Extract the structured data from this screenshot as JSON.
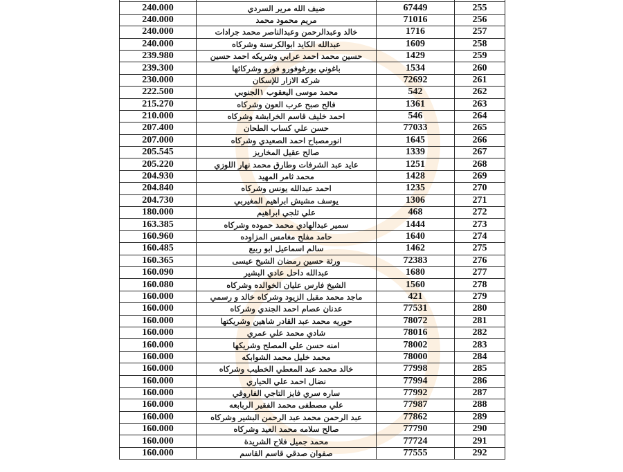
{
  "rows": [
    {
      "amount": "240.000",
      "name": "ضيف الله مرير السردي",
      "number": "67449",
      "index": "255"
    },
    {
      "amount": "240.000",
      "name": "مريم محمود محمد",
      "number": "71016",
      "index": "256"
    },
    {
      "amount": "240.000",
      "name": "خالد وعبدالرحمن وعبدالناصر محمد جرادات",
      "number": "1716",
      "index": "257"
    },
    {
      "amount": "240.000",
      "name": "عبدالله الكايد ابوالكرسنة وشركاه",
      "number": "1609",
      "index": "258"
    },
    {
      "amount": "239.980",
      "name": "حسين محمد احمد عرابي وشريكه احمد حسين",
      "number": "1429",
      "index": "259"
    },
    {
      "amount": "239.300",
      "name": "باغوني بورغوفورو فورو وشركائها",
      "number": "1534",
      "index": "260"
    },
    {
      "amount": "230.000",
      "name": "شركة الازار للإسكان",
      "number": "72692",
      "index": "261"
    },
    {
      "amount": "222.500",
      "name": "محمد موسى اليعقوب ١الجنوبي",
      "number": "542",
      "index": "262"
    },
    {
      "amount": "215.270",
      "name": "فالح صبح عرب العون وشركاه",
      "number": "1361",
      "index": "263"
    },
    {
      "amount": "210.000",
      "name": "احمد خليف قاسم الخرابشة وشركاه",
      "number": "546",
      "index": "264"
    },
    {
      "amount": "207.400",
      "name": "حسن علي كساب الطحان",
      "number": "77033",
      "index": "265"
    },
    {
      "amount": "207.000",
      "name": "انورمصباح احمد الصعيدي وشركاه",
      "number": "1645",
      "index": "266"
    },
    {
      "amount": "205.545",
      "name": "صالح عقيل المخاريز",
      "number": "1339",
      "index": "267"
    },
    {
      "amount": "205.220",
      "name": "عايد عبد الشرفات وطارق محمد نهار اللوزي",
      "number": "1251",
      "index": "268"
    },
    {
      "amount": "204.930",
      "name": "محمد ثامر المهيد",
      "number": "1428",
      "index": "269"
    },
    {
      "amount": "204.840",
      "name": "احمد عبدالله يونس وشركاه",
      "number": "1235",
      "index": "270"
    },
    {
      "amount": "204.730",
      "name": "يوسف مشيش ابراهيم المغيربي",
      "number": "1306",
      "index": "271"
    },
    {
      "amount": "180.000",
      "name": "علي ثلجي ابراهيم",
      "number": "468",
      "index": "272"
    },
    {
      "amount": "163.385",
      "name": "سمير عبدالهادي محمد حموده وشركاه",
      "number": "1444",
      "index": "273"
    },
    {
      "amount": "160.960",
      "name": "حامد مفلح مغامس المزاوده",
      "number": "1640",
      "index": "274"
    },
    {
      "amount": "160.485",
      "name": "سالم اسماعيل ابو ربيع",
      "number": "1462",
      "index": "275"
    },
    {
      "amount": "160.365",
      "name": "ورثة حسين رمضان الشيخ عيسى",
      "number": "72383",
      "index": "276"
    },
    {
      "amount": "160.090",
      "name": "عبدالله داحل عادي البشير",
      "number": "1680",
      "index": "277"
    },
    {
      "amount": "160.080",
      "name": "الشيخ فارس عليان الخوالده وشركاه",
      "number": "1560",
      "index": "278"
    },
    {
      "amount": "160.000",
      "name": "ماجد محمد مقبل الزيود وشركاه خالد و رسمي",
      "number": "421",
      "index": "279"
    },
    {
      "amount": "160.000",
      "name": "عدنان عصام احمد الجندي وشركاه",
      "number": "77531",
      "index": "280"
    },
    {
      "amount": "160.000",
      "name": "حوريه محمد عبد القادر شاهين وشريكتها",
      "number": "78072",
      "index": "281"
    },
    {
      "amount": "160.000",
      "name": "شادي محمد علي عمري",
      "number": "78016",
      "index": "282"
    },
    {
      "amount": "160.000",
      "name": "امنه حسن علي المصلح وشريكها",
      "number": "78002",
      "index": "283"
    },
    {
      "amount": "160.000",
      "name": "محمد خليل محمد الشوابكه",
      "number": "78000",
      "index": "284"
    },
    {
      "amount": "160.000",
      "name": "خالد محمد عبد المعطي الخطيب وشركاه",
      "number": "77998",
      "index": "285"
    },
    {
      "amount": "160.000",
      "name": "نضال احمد علي الحياري",
      "number": "77994",
      "index": "286"
    },
    {
      "amount": "160.000",
      "name": "ساره سري فايز التاجي الفاروقي",
      "number": "77992",
      "index": "287"
    },
    {
      "amount": "160.000",
      "name": "علي مصطفى محمد الفقير الربابعه",
      "number": "77987",
      "index": "288"
    },
    {
      "amount": "160.000",
      "name": "عبد الرحمن محمد عبد الرحمن البشير وشركاه",
      "number": "77862",
      "index": "289"
    },
    {
      "amount": "160.000",
      "name": "صالح سلامه محمد العيد وشركاه",
      "number": "77790",
      "index": "290"
    },
    {
      "amount": "160.000",
      "name": "محمد جميل فلاح الشريدة",
      "number": "77724",
      "index": "291"
    },
    {
      "amount": "160.000",
      "name": "صفوان صدقي قاسم القاسم",
      "number": "77555",
      "index": "292"
    }
  ]
}
